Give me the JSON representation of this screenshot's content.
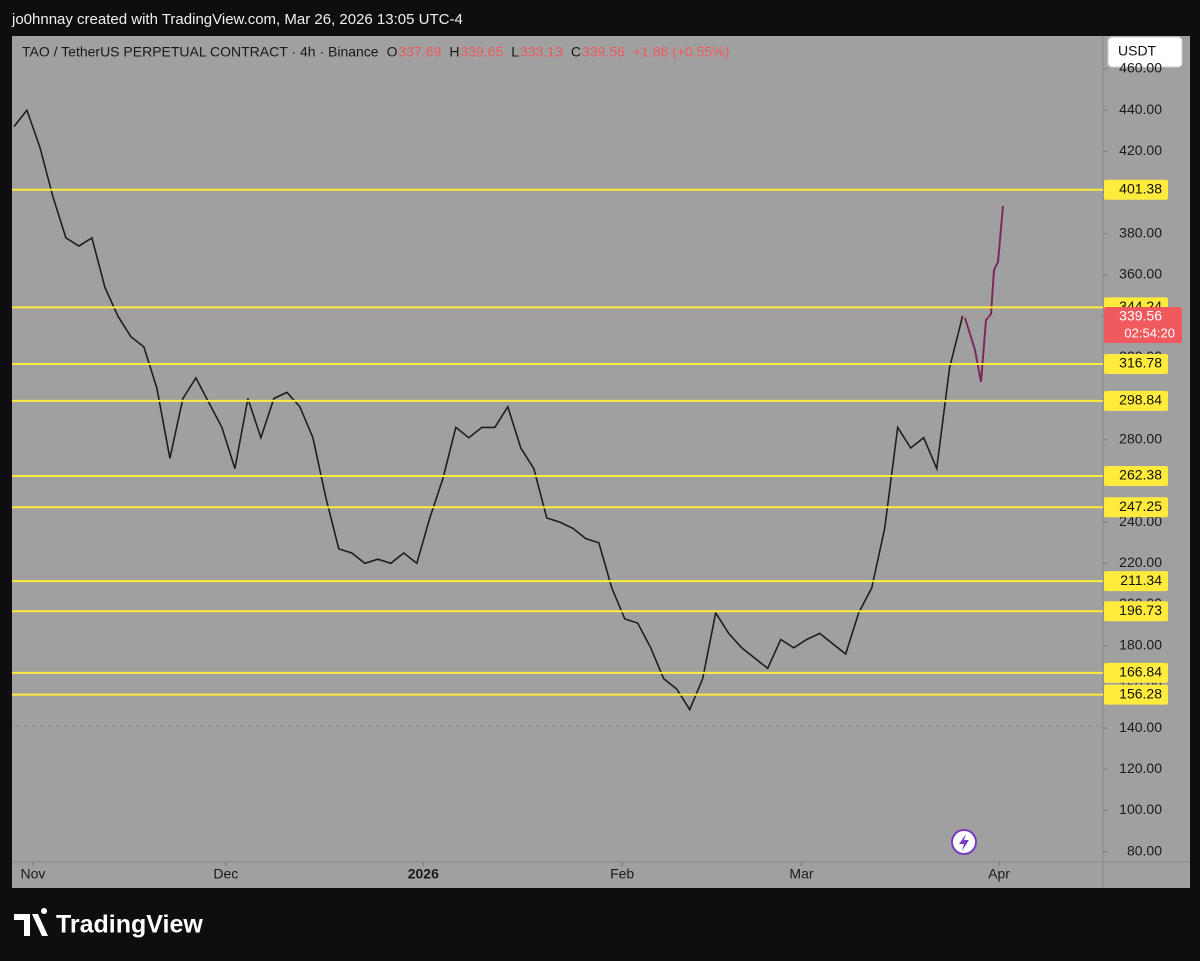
{
  "watermark": "jo0hnnay created with TradingView.com, Mar 26, 2026 13:05 UTC-4",
  "brand": "TradingView",
  "chart_data": {
    "type": "line",
    "title": "TAO / TetherUS PERPETUAL CONTRACT · 4h · Binance",
    "ohlc": [
      {
        "label": "O",
        "value": 337.69
      },
      {
        "label": "H",
        "value": 339.65
      },
      {
        "label": "L",
        "value": 333.13
      },
      {
        "label": "C",
        "value": 339.56
      }
    ],
    "change": "+1.86 (+0.55%)",
    "currency": "USDT",
    "last_price": 339.56,
    "countdown": "02:54:20",
    "color": "#1e1e1e",
    "values": [
      432,
      440,
      422,
      398,
      378,
      374,
      378,
      354,
      340,
      330,
      325,
      305,
      271,
      300,
      310,
      298,
      286,
      266,
      300,
      281,
      300,
      303,
      296,
      281,
      252,
      227,
      225,
      220,
      222,
      220,
      225,
      220,
      242,
      261,
      286,
      281,
      286,
      286,
      296,
      276,
      266,
      242,
      240,
      237,
      232,
      230,
      208,
      193,
      191,
      179,
      164,
      159,
      149,
      164,
      196,
      186,
      179,
      174,
      169,
      183,
      179,
      183,
      186,
      181,
      176,
      196,
      208,
      237,
      286,
      276,
      281,
      266,
      315,
      340
    ],
    "xlim": [
      -0.15,
      83.8
    ],
    "xticks": [
      {
        "value": 1.46,
        "label": "Nov"
      },
      {
        "value": 16.3,
        "label": "Dec"
      },
      {
        "value": 31.5,
        "label": "2026"
      },
      {
        "value": 46.8,
        "label": "Feb"
      },
      {
        "value": 60.6,
        "label": "Mar"
      },
      {
        "value": 75.8,
        "label": "Apr"
      }
    ],
    "ylim": [
      75,
      476
    ],
    "yticks": [
      {
        "value": 80,
        "label": "80.00"
      },
      {
        "value": 100,
        "label": "100.00"
      },
      {
        "value": 120,
        "label": "120.00"
      },
      {
        "value": 140,
        "label": "140.00"
      },
      {
        "value": 160,
        "label": "160.00"
      },
      {
        "value": 180,
        "label": "180.00"
      },
      {
        "value": 200,
        "label": "200.00"
      },
      {
        "value": 220,
        "label": "220.00"
      },
      {
        "value": 240,
        "label": "240.00"
      },
      {
        "value": 260,
        "label": "260.00"
      },
      {
        "value": 280,
        "label": "280.00"
      },
      {
        "value": 300,
        "label": "300.00"
      },
      {
        "value": 320,
        "label": "320.00"
      },
      {
        "value": 340,
        "label": "340.00"
      },
      {
        "value": 360,
        "label": "360.00"
      },
      {
        "value": 380,
        "label": "380.00"
      },
      {
        "value": 400,
        "label": "400.00"
      },
      {
        "value": 420,
        "label": "420.00"
      },
      {
        "value": 440,
        "label": "440.00"
      },
      {
        "value": 460,
        "label": "460.00"
      }
    ],
    "levels": [
      401.38,
      344.24,
      316.78,
      298.84,
      262.38,
      247.25,
      211.34,
      196.73,
      166.84,
      156.28
    ],
    "level_color": "#ffeb3b",
    "price_color": "#f05a5f"
  }
}
